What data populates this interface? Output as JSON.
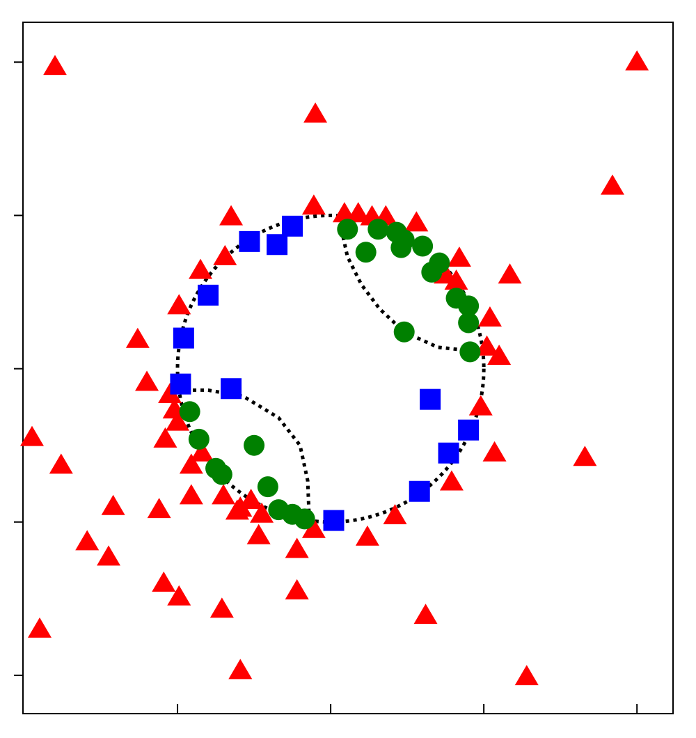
{
  "chart_data": {
    "type": "scatter",
    "xlim": [
      0,
      4.24
    ],
    "ylim": [
      -0.25,
      4.26
    ],
    "xticks": [
      1,
      2,
      3,
      4
    ],
    "yticks": [
      0,
      1,
      2,
      3,
      4
    ],
    "boundary": {
      "center": [
        2,
        2
      ],
      "radius": 1
    },
    "curves": [
      {
        "x": [
          2.07,
          2.11,
          2.2,
          2.32,
          2.48,
          2.7,
          2.98
        ],
        "y": [
          2.91,
          2.73,
          2.55,
          2.39,
          2.24,
          2.14,
          2.11
        ]
      },
      {
        "x": [
          1.0,
          1.2,
          1.43,
          1.66,
          1.8,
          1.85,
          1.86
        ],
        "y": [
          1.86,
          1.86,
          1.82,
          1.68,
          1.5,
          1.27,
          1.02
        ]
      }
    ],
    "series": [
      {
        "marker": "triangle",
        "color": "#ff0000",
        "x": [
          0.2,
          4.0,
          1.9,
          3.84,
          1.35,
          1.89,
          2.09,
          2.18,
          2.27,
          2.36,
          2.56,
          1.31,
          1.15,
          2.84,
          3.17,
          2.82,
          1.01,
          0.74,
          3.04,
          3.02,
          3.1,
          0.8,
          0.95,
          0.98,
          1.0,
          2.98,
          0.05,
          0.92,
          0.24,
          1.09,
          3.07,
          3.66,
          2.79,
          0.58,
          0.88,
          1.09,
          1.3,
          1.41,
          1.48,
          1.55,
          1.39,
          1.89,
          2.42,
          1.53,
          2.24,
          0.41,
          1.78,
          0.55,
          0.91,
          1.01,
          1.78,
          1.29,
          2.62,
          0.1,
          1.41,
          3.28,
          1.16,
          2.75
        ],
        "y": [
          3.97,
          4.0,
          3.66,
          3.19,
          2.99,
          3.06,
          3.01,
          3.01,
          2.99,
          2.99,
          2.95,
          2.73,
          2.64,
          2.72,
          2.61,
          2.57,
          2.41,
          2.19,
          2.33,
          2.14,
          2.08,
          1.91,
          1.83,
          1.73,
          1.65,
          1.75,
          1.55,
          1.54,
          1.37,
          1.37,
          1.45,
          1.42,
          1.26,
          1.1,
          1.08,
          1.17,
          1.17,
          1.09,
          1.14,
          1.05,
          1.07,
          0.95,
          1.04,
          0.91,
          0.9,
          0.87,
          0.82,
          0.77,
          0.6,
          0.51,
          0.55,
          0.43,
          0.39,
          0.3,
          0.03,
          -0.01,
          1.45,
          2.61
        ]
      },
      {
        "marker": "square",
        "color": "#0000ff",
        "x": [
          1.75,
          1.47,
          1.65,
          1.2,
          1.04,
          1.02,
          1.35,
          2.65,
          2.9,
          2.77,
          2.58,
          2.02
        ],
        "y": [
          2.93,
          2.83,
          2.81,
          2.48,
          2.2,
          1.9,
          1.87,
          1.8,
          1.6,
          1.45,
          1.2,
          1.01
        ]
      },
      {
        "marker": "circle",
        "color": "#008000",
        "x": [
          2.11,
          2.31,
          2.43,
          2.48,
          2.46,
          2.23,
          2.6,
          2.71,
          2.66,
          2.82,
          2.9,
          2.9,
          2.48,
          2.91,
          1.08,
          1.14,
          1.5,
          1.25,
          1.29,
          1.59,
          1.66,
          1.75,
          1.83
        ],
        "y": [
          2.91,
          2.91,
          2.89,
          2.84,
          2.79,
          2.76,
          2.8,
          2.69,
          2.63,
          2.46,
          2.41,
          2.3,
          2.24,
          2.11,
          1.72,
          1.54,
          1.5,
          1.35,
          1.31,
          1.23,
          1.08,
          1.05,
          1.02
        ]
      }
    ]
  }
}
